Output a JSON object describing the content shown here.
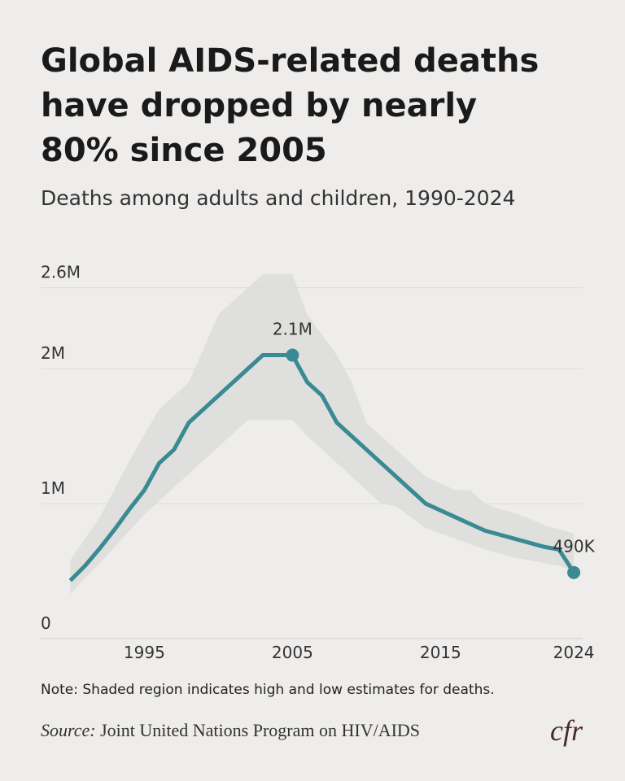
{
  "chart_data": {
    "type": "line",
    "title": [
      "Global AIDS-related deaths",
      "have dropped by nearly",
      "80% since 2005"
    ],
    "subtitle": "Deaths among adults and children, 1990-2024",
    "x": [
      1990,
      1991,
      1992,
      1993,
      1994,
      1995,
      1996,
      1997,
      1998,
      1999,
      2000,
      2001,
      2002,
      2003,
      2004,
      2005,
      2006,
      2007,
      2008,
      2009,
      2010,
      2011,
      2012,
      2013,
      2014,
      2015,
      2016,
      2017,
      2018,
      2019,
      2020,
      2021,
      2022,
      2023,
      2024
    ],
    "values": [
      430000,
      540000,
      670000,
      810000,
      960000,
      1100000,
      1300000,
      1400000,
      1600000,
      1700000,
      1800000,
      1900000,
      2000000,
      2100000,
      2100000,
      2100000,
      1900000,
      1800000,
      1600000,
      1500000,
      1400000,
      1300000,
      1200000,
      1100000,
      1000000,
      950000,
      900000,
      850000,
      800000,
      770000,
      740000,
      710000,
      680000,
      660000,
      490000
    ],
    "value_labels": [
      null,
      null,
      null,
      null,
      null,
      null,
      null,
      null,
      null,
      null,
      null,
      null,
      null,
      null,
      null,
      "2.1M",
      null,
      null,
      null,
      null,
      null,
      null,
      null,
      null,
      null,
      null,
      null,
      null,
      null,
      null,
      null,
      null,
      null,
      null,
      "490K"
    ],
    "color": "#3a8a93",
    "band": {
      "color": "#dfdfdd",
      "high": [
        580000,
        740000,
        900000,
        1110000,
        1320000,
        1510000,
        1700000,
        1800000,
        1900000,
        2150000,
        2400000,
        2500000,
        2600000,
        2700000,
        2700000,
        2700000,
        2400000,
        2250000,
        2100000,
        1900000,
        1600000,
        1500000,
        1400000,
        1300000,
        1200000,
        1150000,
        1100000,
        1100000,
        1000000,
        960000,
        930000,
        890000,
        840000,
        810000,
        780000
      ],
      "low": [
        330000,
        450000,
        560000,
        680000,
        800000,
        920000,
        1020000,
        1120000,
        1220000,
        1320000,
        1420000,
        1520000,
        1620000,
        1620000,
        1620000,
        1620000,
        1500000,
        1400000,
        1300000,
        1200000,
        1100000,
        1000000,
        980000,
        900000,
        820000,
        780000,
        740000,
        700000,
        660000,
        630000,
        600000,
        580000,
        560000,
        540000,
        500000
      ]
    },
    "xlim": [
      1988,
      2024.6
    ],
    "xticks": [
      1995,
      2005,
      2015,
      2024
    ],
    "ylim": [
      0,
      2700000
    ],
    "yticks": [
      0,
      {
        "value": 1000000,
        "label": "1M"
      },
      {
        "value": 2000000,
        "label": "2M"
      },
      {
        "value": 2600000,
        "label": "2.6M"
      }
    ],
    "grid": true,
    "note": "Note: Shaded region indicates high and low estimates for deaths.",
    "source_label": "Source:",
    "source": "Joint United Nations Program on HIV/AIDS",
    "logo": "cfr"
  }
}
